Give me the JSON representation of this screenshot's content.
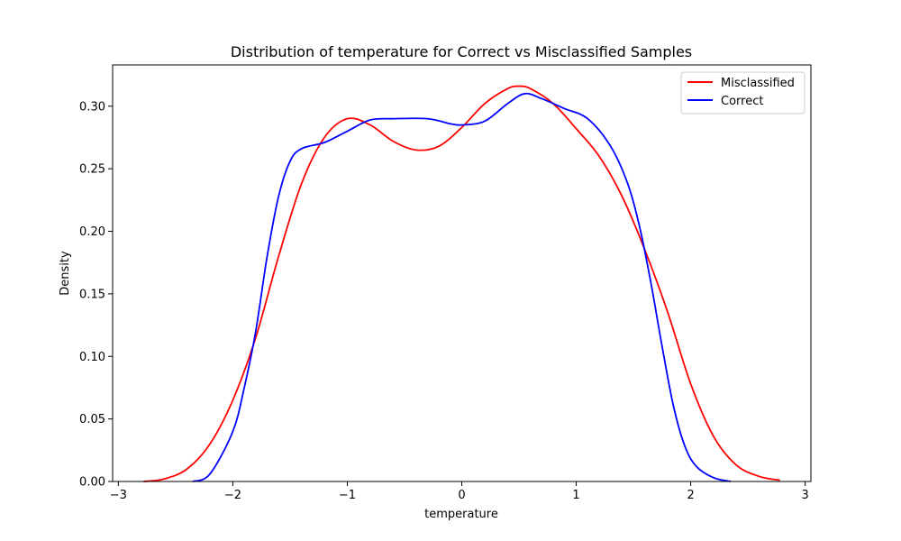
{
  "chart_data": {
    "type": "line",
    "title": "Distribution of temperature for Correct vs Misclassified Samples",
    "xlabel": "temperature",
    "ylabel": "Density",
    "xlim": [
      -3.05,
      3.05
    ],
    "ylim": [
      0.0,
      0.333
    ],
    "xticks": [
      -3,
      -2,
      -1,
      0,
      1,
      2,
      3
    ],
    "xtick_labels": [
      "−3",
      "−2",
      "−1",
      "0",
      "1",
      "2",
      "3"
    ],
    "yticks": [
      0.0,
      0.05,
      0.1,
      0.15,
      0.2,
      0.25,
      0.3
    ],
    "ytick_labels": [
      "0.00",
      "0.05",
      "0.10",
      "0.15",
      "0.20",
      "0.25",
      "0.30"
    ],
    "grid": false,
    "legend_position": "top-right",
    "series": [
      {
        "name": "Misclassified",
        "color": "#ff0000",
        "points": [
          [
            -2.78,
            0.0
          ],
          [
            -2.6,
            0.002
          ],
          [
            -2.4,
            0.01
          ],
          [
            -2.2,
            0.03
          ],
          [
            -2.0,
            0.065
          ],
          [
            -1.8,
            0.115
          ],
          [
            -1.6,
            0.18
          ],
          [
            -1.4,
            0.238
          ],
          [
            -1.2,
            0.275
          ],
          [
            -1.0,
            0.29
          ],
          [
            -0.8,
            0.285
          ],
          [
            -0.6,
            0.272
          ],
          [
            -0.4,
            0.265
          ],
          [
            -0.2,
            0.268
          ],
          [
            0.0,
            0.283
          ],
          [
            0.2,
            0.302
          ],
          [
            0.4,
            0.314
          ],
          [
            0.5,
            0.316
          ],
          [
            0.6,
            0.314
          ],
          [
            0.8,
            0.302
          ],
          [
            1.0,
            0.282
          ],
          [
            1.2,
            0.26
          ],
          [
            1.4,
            0.228
          ],
          [
            1.6,
            0.185
          ],
          [
            1.8,
            0.135
          ],
          [
            2.0,
            0.078
          ],
          [
            2.2,
            0.036
          ],
          [
            2.4,
            0.013
          ],
          [
            2.6,
            0.004
          ],
          [
            2.78,
            0.001
          ]
        ]
      },
      {
        "name": "Correct",
        "color": "#0000ff",
        "points": [
          [
            -2.35,
            0.0
          ],
          [
            -2.2,
            0.006
          ],
          [
            -2.0,
            0.04
          ],
          [
            -1.9,
            0.075
          ],
          [
            -1.8,
            0.12
          ],
          [
            -1.7,
            0.18
          ],
          [
            -1.6,
            0.228
          ],
          [
            -1.5,
            0.256
          ],
          [
            -1.4,
            0.266
          ],
          [
            -1.2,
            0.271
          ],
          [
            -1.0,
            0.28
          ],
          [
            -0.8,
            0.289
          ],
          [
            -0.6,
            0.29
          ],
          [
            -0.3,
            0.29
          ],
          [
            -0.1,
            0.286
          ],
          [
            0.0,
            0.285
          ],
          [
            0.2,
            0.288
          ],
          [
            0.4,
            0.302
          ],
          [
            0.55,
            0.31
          ],
          [
            0.7,
            0.306
          ],
          [
            0.9,
            0.298
          ],
          [
            1.1,
            0.29
          ],
          [
            1.3,
            0.268
          ],
          [
            1.45,
            0.238
          ],
          [
            1.55,
            0.205
          ],
          [
            1.65,
            0.16
          ],
          [
            1.75,
            0.108
          ],
          [
            1.85,
            0.06
          ],
          [
            1.95,
            0.028
          ],
          [
            2.05,
            0.012
          ],
          [
            2.2,
            0.003
          ],
          [
            2.35,
            0.0
          ]
        ]
      }
    ]
  }
}
